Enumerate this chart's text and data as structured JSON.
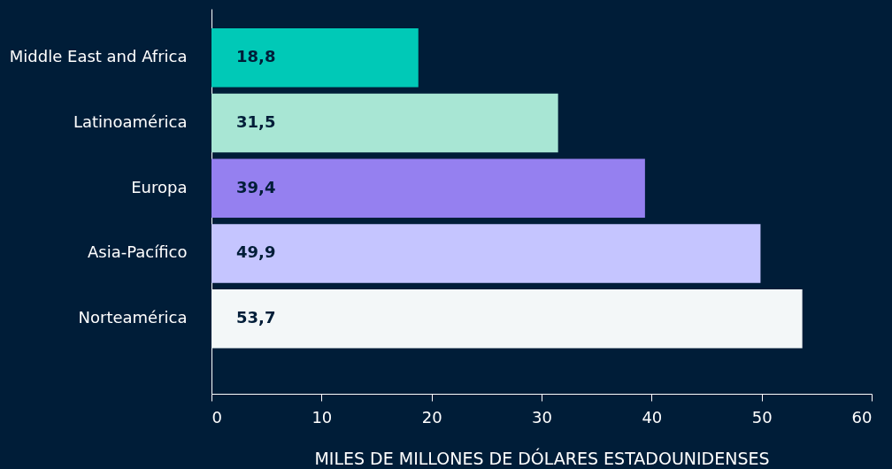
{
  "chart_data": {
    "type": "bar",
    "orientation": "horizontal",
    "xlabel": "MILES DE MILLONES DE DÓLARES ESTADOUNIDENSES",
    "categories": [
      "Middle East and Africa",
      "Latinoamérica",
      "Europa",
      "Asia-Pacífico",
      "Norteamérica"
    ],
    "values": [
      18.8,
      31.5,
      39.4,
      49.9,
      53.7
    ],
    "colors": [
      "#00c9b7",
      "#a8e6d4",
      "#9580f0",
      "#c5c5ff",
      "#f3f7f8"
    ],
    "value_labels": [
      "18,8",
      "31,5",
      "39,4",
      "49,9",
      "53,7"
    ],
    "xlim": [
      0,
      60
    ],
    "xticks": [
      0,
      10,
      20,
      30,
      40,
      50,
      60
    ],
    "grid": false
  }
}
